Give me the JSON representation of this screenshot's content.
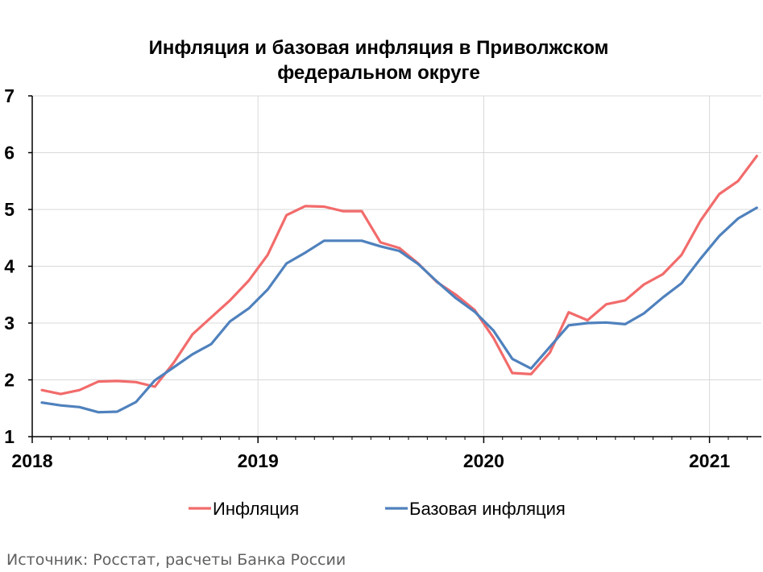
{
  "chart_data": {
    "type": "line",
    "title_lines": [
      "Инфляция и базовая инфляция в Приволжском",
      "федеральном округе"
    ],
    "xlabel": "",
    "ylabel": "",
    "x_tick_labels": [
      "2018",
      "2019",
      "2020",
      "2021"
    ],
    "y_ticks": [
      1,
      2,
      3,
      4,
      5,
      6,
      7
    ],
    "ylim": [
      1,
      7
    ],
    "x_start": "2018-01",
    "grid": {
      "vertical": true,
      "horizontal": true
    },
    "legend_position": "bottom",
    "series": [
      {
        "name": "Инфляция",
        "color": "#f26b6b",
        "values": [
          1.82,
          1.75,
          1.82,
          1.97,
          1.98,
          1.96,
          1.88,
          2.3,
          2.8,
          3.1,
          3.4,
          3.75,
          4.2,
          4.9,
          5.06,
          5.05,
          4.97,
          4.97,
          4.42,
          4.32,
          4.05,
          3.72,
          3.5,
          3.23,
          2.74,
          2.12,
          2.1,
          2.48,
          3.19,
          3.05,
          3.33,
          3.4,
          3.68,
          3.86,
          4.2,
          4.8,
          5.27,
          5.5,
          5.94
        ]
      },
      {
        "name": "Базовая инфляция",
        "color": "#4f81bd",
        "values": [
          1.6,
          1.55,
          1.52,
          1.43,
          1.44,
          1.61,
          1.99,
          2.22,
          2.45,
          2.63,
          3.03,
          3.26,
          3.59,
          4.05,
          4.24,
          4.45,
          4.45,
          4.45,
          4.35,
          4.27,
          4.04,
          3.73,
          3.44,
          3.2,
          2.87,
          2.37,
          2.2,
          2.58,
          2.96,
          3.0,
          3.01,
          2.98,
          3.17,
          3.45,
          3.7,
          4.13,
          4.53,
          4.84,
          5.03
        ]
      }
    ]
  },
  "source_note": "Источник: Росстат, расчеты Банка России"
}
